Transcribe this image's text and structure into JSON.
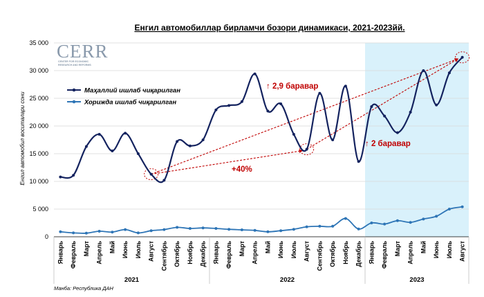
{
  "logo": {
    "text": "CERR",
    "subtext": [
      "CENTER FOR ECONOMIC",
      "RESEARCH AND REFORMS"
    ]
  },
  "source": "Манба: Республика ДАН",
  "colors": {
    "domestic": "#14235f",
    "imported": "#2e75b6",
    "highlight": "#d9f1fb",
    "annotation": "#c00000",
    "grid": "#d9d9d9"
  },
  "chart_data": {
    "type": "line",
    "title": "Енгил автомобиллар бирламчи бозори динамикаси, 2021-2023йй.",
    "ylabel": "Енгил автомобил воситалари сони",
    "ylim": [
      0,
      35000
    ],
    "yticks": [
      "0",
      "5 000",
      "10 000",
      "15 000",
      "20 000",
      "25 000",
      "30 000",
      "35 000"
    ],
    "categories": [
      "Январь",
      "Февраль",
      "Март",
      "Апрель",
      "Май",
      "Июнь",
      "Июль",
      "Август",
      "Сентябрь",
      "Октябрь",
      "Ноябрь",
      "Декабрь",
      "Январь",
      "Февраль",
      "Март",
      "Апрель",
      "Май",
      "Июнь",
      "Июль",
      "Август",
      "Сентябрь",
      "Октябрь",
      "Ноябрь",
      "Декабрь",
      "Январь",
      "Февраль",
      "Март",
      "Апрель",
      "Май",
      "Июнь",
      "Июль",
      "Август"
    ],
    "years": [
      {
        "label": "2021",
        "start": 0,
        "end": 11
      },
      {
        "label": "2022",
        "start": 12,
        "end": 23
      },
      {
        "label": "2023",
        "start": 24,
        "end": 31
      }
    ],
    "highlight_range": [
      24,
      31
    ],
    "series": [
      {
        "name": "Маҳаллий ишлаб чиқарилган",
        "values": [
          10800,
          11100,
          16300,
          18500,
          15500,
          18700,
          15000,
          11300,
          10200,
          17200,
          16400,
          17500,
          22900,
          23700,
          24400,
          29400,
          22700,
          24000,
          18500,
          15800,
          25900,
          17500,
          27200,
          13600,
          23500,
          21800,
          18800,
          22500,
          30000,
          23800,
          29600,
          32400
        ]
      },
      {
        "name": "Хорижда ишлаб чиқарилган",
        "values": [
          900,
          700,
          650,
          1000,
          850,
          1300,
          700,
          1100,
          1300,
          1700,
          1500,
          1600,
          1500,
          1350,
          1250,
          1150,
          900,
          1100,
          1350,
          1800,
          1900,
          1900,
          3300,
          1400,
          2500,
          2300,
          2900,
          2600,
          3200,
          3700,
          5000,
          5400
        ]
      }
    ],
    "annotations": [
      {
        "text": "↑ 2,9 баравар",
        "from_index": 7,
        "to_index": 31
      },
      {
        "text": "+40%",
        "from_index": 7,
        "to_index": 19
      },
      {
        "text": "↑ 2 баравар",
        "from_index": 19,
        "to_index": 31
      }
    ]
  }
}
